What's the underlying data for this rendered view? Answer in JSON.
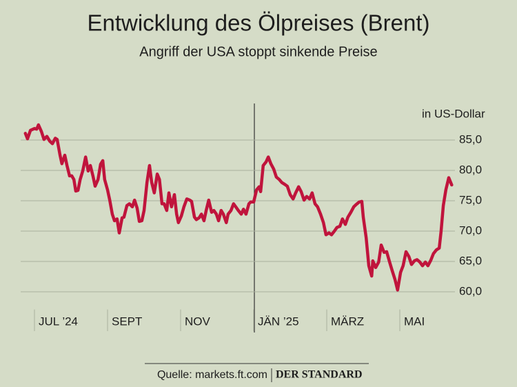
{
  "chart_data": {
    "type": "line",
    "title": "Entwicklung des Ölpreises (Brent)",
    "subtitle": "Angriff der USA stoppt sinkende Preise",
    "y_label": "in US-Dollar",
    "xlim": [
      -0.5,
      11.8
    ],
    "xticks": [
      {
        "value": 0,
        "label": "JUL ’24"
      },
      {
        "value": 2,
        "label": "SEPT"
      },
      {
        "value": 4,
        "label": "NOV"
      },
      {
        "value": 6,
        "label": "JÄN ’25"
      },
      {
        "value": 8,
        "label": "MÄRZ"
      },
      {
        "value": 10,
        "label": "MAI"
      }
    ],
    "ylim": [
      58,
      88
    ],
    "yticks": [
      {
        "value": 60,
        "label": "60,0"
      },
      {
        "value": 65,
        "label": "65,0"
      },
      {
        "value": 70,
        "label": "70,0"
      },
      {
        "value": 75,
        "label": "75,0"
      },
      {
        "value": 80,
        "label": "80,0"
      },
      {
        "value": 85,
        "label": "85,0"
      }
    ],
    "grid": true,
    "series": [
      {
        "color": "#c0143c",
        "x": [
          -0.25,
          -0.19,
          -0.11,
          0,
          0.06,
          0.11,
          0.19,
          0.26,
          0.34,
          0.42,
          0.49,
          0.57,
          0.62,
          0.7,
          0.75,
          0.83,
          0.89,
          0.96,
          1.02,
          1.08,
          1.13,
          1.19,
          1.25,
          1.32,
          1.4,
          1.47,
          1.53,
          1.6,
          1.66,
          1.74,
          1.81,
          1.87,
          1.92,
          2.0,
          2.06,
          2.13,
          2.19,
          2.26,
          2.32,
          2.4,
          2.45,
          2.53,
          2.6,
          2.68,
          2.74,
          2.81,
          2.87,
          2.94,
          3.0,
          3.08,
          3.15,
          3.21,
          3.28,
          3.36,
          3.42,
          3.49,
          3.55,
          3.62,
          3.68,
          3.75,
          3.83,
          3.89,
          3.94,
          4.02,
          4.09,
          4.17,
          4.25,
          4.3,
          4.38,
          4.43,
          4.51,
          4.57,
          4.64,
          4.7,
          4.77,
          4.85,
          4.91,
          4.98,
          5.04,
          5.11,
          5.17,
          5.25,
          5.3,
          5.38,
          5.45,
          5.51,
          5.58,
          5.66,
          5.72,
          5.79,
          5.87,
          5.92,
          6.0,
          6.08,
          6.15,
          6.19,
          6.26,
          6.34,
          6.4,
          6.47,
          6.55,
          6.62,
          6.7,
          6.77,
          6.85,
          6.92,
          7.0,
          7.08,
          7.15,
          7.23,
          7.3,
          7.38,
          7.45,
          7.53,
          7.6,
          7.68,
          7.75,
          7.83,
          7.91,
          7.98,
          8.06,
          8.13,
          8.21,
          8.28,
          8.36,
          8.43,
          8.51,
          8.58,
          8.66,
          8.74,
          8.81,
          8.89,
          8.96,
          9.0,
          9.08,
          9.15,
          9.23,
          9.26,
          9.34,
          9.42,
          9.49,
          9.57,
          9.64,
          9.72,
          9.79,
          9.87,
          9.94,
          10.02,
          10.09,
          10.17,
          10.25,
          10.32,
          10.4,
          10.47,
          10.55,
          10.62,
          10.7,
          10.77,
          10.85,
          10.92,
          11.0,
          11.08,
          11.13,
          11.19,
          11.26,
          11.34,
          11.42
        ],
        "values": [
          86.1,
          85.2,
          86.6,
          86.9,
          86.8,
          87.5,
          86.4,
          85.1,
          85.6,
          84.8,
          84.4,
          85.3,
          85.1,
          82.5,
          81.1,
          82.5,
          80.8,
          79.1,
          79.1,
          78.5,
          76.6,
          76.7,
          78.5,
          79.9,
          82.2,
          79.9,
          80.8,
          79.1,
          77.4,
          78.5,
          81.0,
          81.6,
          78.5,
          76.8,
          75.1,
          72.8,
          71.7,
          72.0,
          69.7,
          72.2,
          72.3,
          74.2,
          74.5,
          74.0,
          75.1,
          73.8,
          71.6,
          71.7,
          73.4,
          78.0,
          80.8,
          78.0,
          76.3,
          79.4,
          78.5,
          74.5,
          74.5,
          73.4,
          76.3,
          74.0,
          76.0,
          72.8,
          71.4,
          72.5,
          74.0,
          75.3,
          75.1,
          74.9,
          72.3,
          71.9,
          72.2,
          72.8,
          71.7,
          73.4,
          75.1,
          73.1,
          73.4,
          72.8,
          71.7,
          73.4,
          72.8,
          71.4,
          72.8,
          73.4,
          74.5,
          74.0,
          73.4,
          72.8,
          73.6,
          72.8,
          74.5,
          74.8,
          74.8,
          76.8,
          77.3,
          76.5,
          80.8,
          81.4,
          82.2,
          81.1,
          80.2,
          78.9,
          78.5,
          78.0,
          77.7,
          77.4,
          76.0,
          75.3,
          76.3,
          77.3,
          76.5,
          75.1,
          75.7,
          75.3,
          76.3,
          74.5,
          74.0,
          72.8,
          71.4,
          69.4,
          69.7,
          69.4,
          70.0,
          70.6,
          70.8,
          72.0,
          71.1,
          72.3,
          73.1,
          74.0,
          74.4,
          74.8,
          74.9,
          72.3,
          68.9,
          64.3,
          62.6,
          65.1,
          64.0,
          64.9,
          67.7,
          66.5,
          66.6,
          64.9,
          63.5,
          62.0,
          60.3,
          63.2,
          64.3,
          66.6,
          65.8,
          64.5,
          65.1,
          65.3,
          64.9,
          64.3,
          64.9,
          64.3,
          65.2,
          66.3,
          66.9,
          67.2,
          70.0,
          74.2,
          76.8,
          78.8,
          77.6
        ]
      }
    ]
  },
  "source": "Quelle: markets.ft.com",
  "publisher": "DER STANDARD"
}
